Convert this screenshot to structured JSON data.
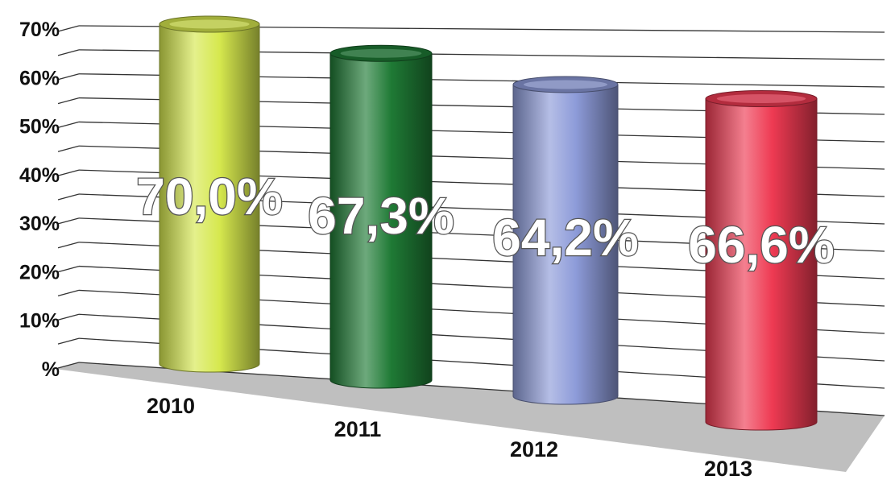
{
  "chart_data": {
    "type": "bar",
    "categories": [
      "2010",
      "2011",
      "2012",
      "2013"
    ],
    "values": [
      70.0,
      67.3,
      64.2,
      66.6
    ],
    "data_labels": [
      "70,0%",
      "67,3%",
      "64,2%",
      "66,6%"
    ],
    "y_ticks": [
      "%",
      "10%",
      "20%",
      "30%",
      "40%",
      "50%",
      "60%",
      "70%"
    ],
    "ylim": [
      0,
      70
    ],
    "title": "",
    "xlabel": "",
    "ylabel": "",
    "grid": true,
    "legend": "none",
    "colors": [
      "#d6e84e",
      "#1f7a35",
      "#8d9bd9",
      "#ee3a52"
    ]
  }
}
